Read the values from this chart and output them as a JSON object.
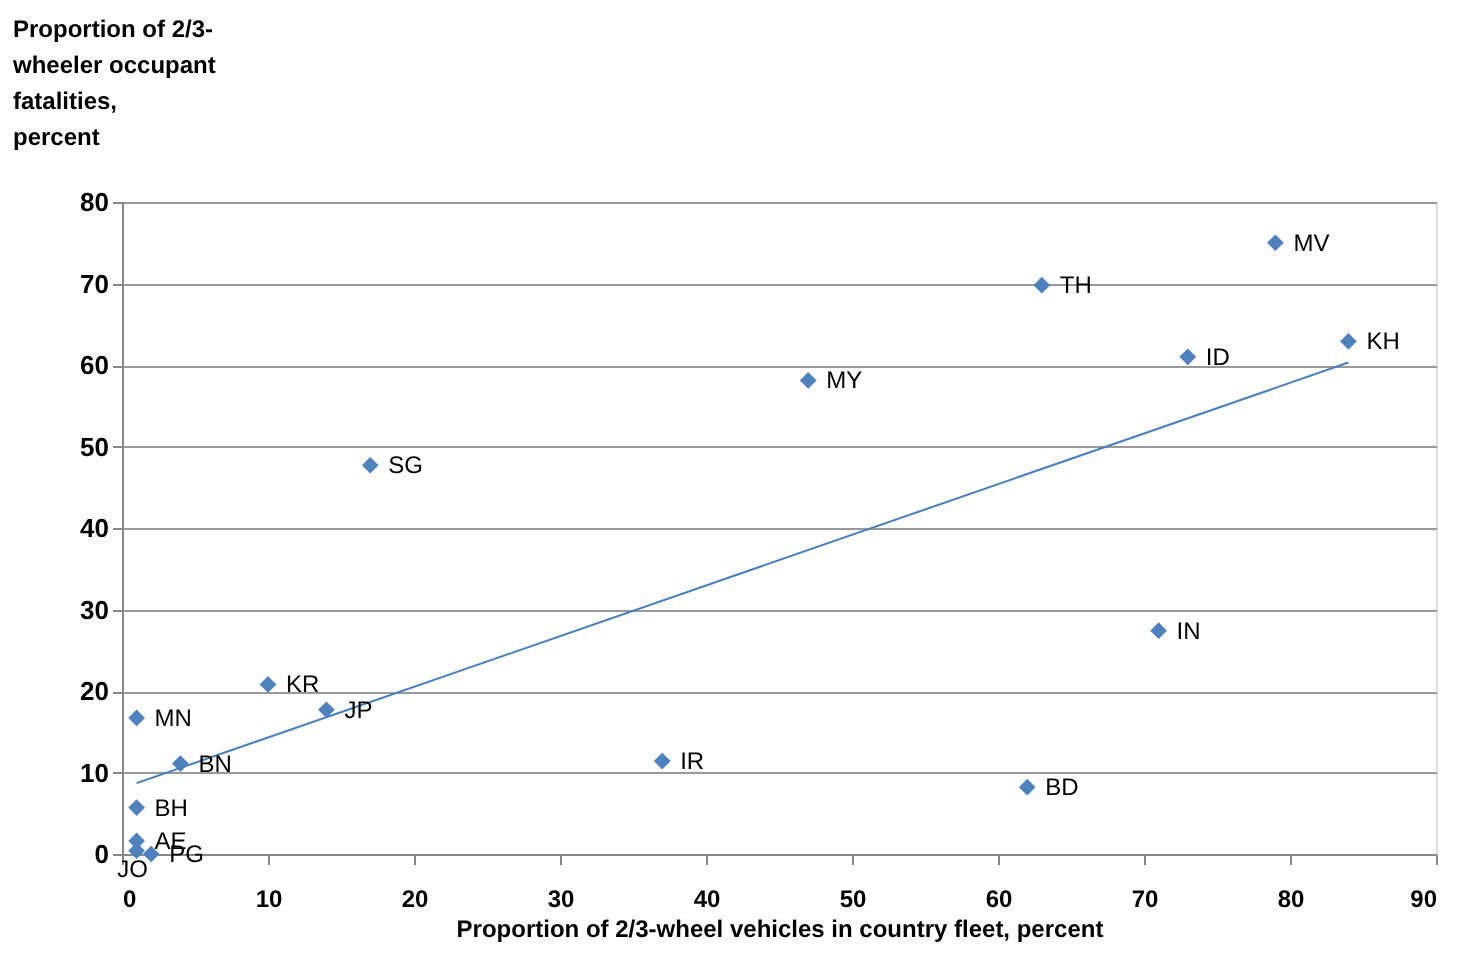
{
  "chart_data": {
    "type": "scatter",
    "xlabel": "Proportion of 2/3-wheel vehicles in country fleet, percent",
    "ylabel": "Proportion of 2/3-wheeler occupant fatalities, percent",
    "xlim": [
      0,
      90
    ],
    "xticks": [
      0,
      10,
      20,
      30,
      40,
      50,
      60,
      70,
      80,
      90
    ],
    "ylim": [
      0,
      80
    ],
    "yticks": [
      0,
      10,
      20,
      30,
      40,
      50,
      60,
      70,
      80
    ],
    "grid": "y",
    "series": [
      {
        "marker": "diamond",
        "color": "#4f81bd",
        "x": [
          79,
          63,
          84,
          73,
          47,
          17,
          71,
          62,
          10,
          14,
          1,
          4,
          37,
          1,
          1,
          2,
          1
        ],
        "values": [
          75,
          69.8,
          62.9,
          61,
          58.1,
          47.7,
          27.4,
          8.2,
          20.8,
          17.7,
          16.7,
          11.1,
          11.4,
          5.7,
          1.6,
          0,
          0.4
        ]
      },
      {
        "type": "line",
        "color": "#4a7ebb",
        "x": [
          1,
          84
        ],
        "values": [
          8.7,
          60.3
        ]
      }
    ],
    "annotations": [
      {
        "text": "MV",
        "x": 79,
        "y": 75
      },
      {
        "text": "TH",
        "x": 63,
        "y": 69.8
      },
      {
        "text": "KH",
        "x": 84,
        "y": 62.9
      },
      {
        "text": "ID",
        "x": 73,
        "y": 61
      },
      {
        "text": "MY",
        "x": 47,
        "y": 58.1
      },
      {
        "text": "SG",
        "x": 17,
        "y": 47.7
      },
      {
        "text": "IN",
        "x": 71,
        "y": 27.4
      },
      {
        "text": "BD",
        "x": 62,
        "y": 8.2
      },
      {
        "text": "KR",
        "x": 10,
        "y": 20.8
      },
      {
        "text": "JP",
        "x": 14,
        "y": 17.7
      },
      {
        "text": "MN",
        "x": 1,
        "y": 16.7
      },
      {
        "text": "BN",
        "x": 4,
        "y": 11.1
      },
      {
        "text": "IR",
        "x": 37,
        "y": 11.4
      },
      {
        "text": "BH",
        "x": 1,
        "y": 5.7
      },
      {
        "text": "AE",
        "x": 1,
        "y": 1.6
      },
      {
        "text": "PG",
        "x": 2,
        "y": 0
      },
      {
        "text": "JO",
        "x": 1,
        "y": 0.4
      }
    ]
  }
}
